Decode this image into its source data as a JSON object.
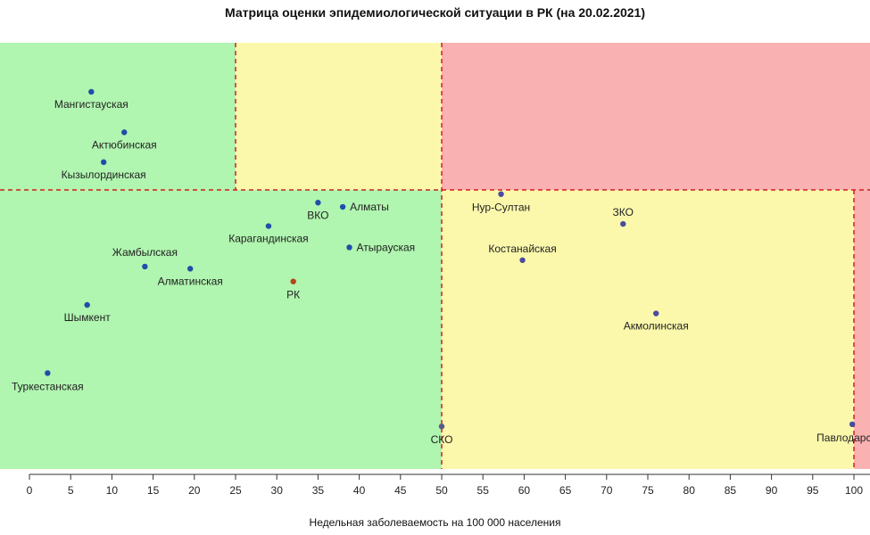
{
  "chart_data": {
    "type": "scatter",
    "title": "Матрица оценки эпидемиологической ситуации в РК (на 20.02.2021)",
    "xlabel": "Недельная заболеваемость на 100 000 населения",
    "xlim": [
      0,
      100
    ],
    "x_ticks": [
      "0",
      "5",
      "10",
      "15",
      "20",
      "25",
      "30",
      "35",
      "40",
      "45",
      "50",
      "55",
      "60",
      "65",
      "70",
      "75",
      "80",
      "85",
      "90",
      "95",
      "100"
    ],
    "zone_colors": {
      "green": "#b0f5b0",
      "yellow": "#fbf8ac",
      "red": "#fab1b1"
    },
    "line_color": "#d02020",
    "vertical_lines_x": [
      25,
      50,
      100
    ],
    "points": [
      {
        "label": "Мангистауская",
        "x": 7.5,
        "y_level": 0.885,
        "color": "#1f4fa8"
      },
      {
        "label": "Актюбинская",
        "x": 11.5,
        "y_level": 0.79,
        "color": "#1f4fa8"
      },
      {
        "label": "Кызылординская",
        "x": 9.0,
        "y_level": 0.72,
        "color": "#1f4fa8"
      },
      {
        "label": "ВКО",
        "x": 35.0,
        "y_level": 0.625,
        "color": "#1f4fa8"
      },
      {
        "label": "Алматы",
        "x": 38.0,
        "y_level": 0.615,
        "color": "#1f4fa8"
      },
      {
        "label": "Карагандинская",
        "x": 29.0,
        "y_level": 0.57,
        "color": "#1f4fa8"
      },
      {
        "label": "Атырауская",
        "x": 38.8,
        "y_level": 0.52,
        "color": "#1f4fa8"
      },
      {
        "label": "Жамбылская",
        "x": 14.0,
        "y_level": 0.475,
        "color": "#1f4fa8"
      },
      {
        "label": "Алматинская",
        "x": 19.5,
        "y_level": 0.47,
        "color": "#1f4fa8"
      },
      {
        "label": "РК",
        "x": 32.0,
        "y_level": 0.44,
        "color": "#b5451b",
        "label_color": "#c04010"
      },
      {
        "label": "Шымкент",
        "x": 7.0,
        "y_level": 0.385,
        "color": "#1f4fa8"
      },
      {
        "label": "Туркестанская",
        "x": 2.2,
        "y_level": 0.225,
        "color": "#1f4fa8"
      },
      {
        "label": "СКО",
        "x": 50.0,
        "y_level": 0.1,
        "color": "#5a5a8a"
      },
      {
        "label": "Нур-Султан",
        "x": 57.2,
        "y_level": 0.645,
        "color": "#4a4aa0"
      },
      {
        "label": "ЗКО",
        "x": 72.0,
        "y_level": 0.575,
        "color": "#4a4aa0"
      },
      {
        "label": "Костанайская",
        "x": 59.8,
        "y_level": 0.49,
        "color": "#4a4aa0"
      },
      {
        "label": "Акмолинская",
        "x": 76.0,
        "y_level": 0.365,
        "color": "#4a4aa0"
      },
      {
        "label": "Павлодарская",
        "x": 99.8,
        "y_level": 0.105,
        "color": "#4a4aa0"
      }
    ]
  }
}
